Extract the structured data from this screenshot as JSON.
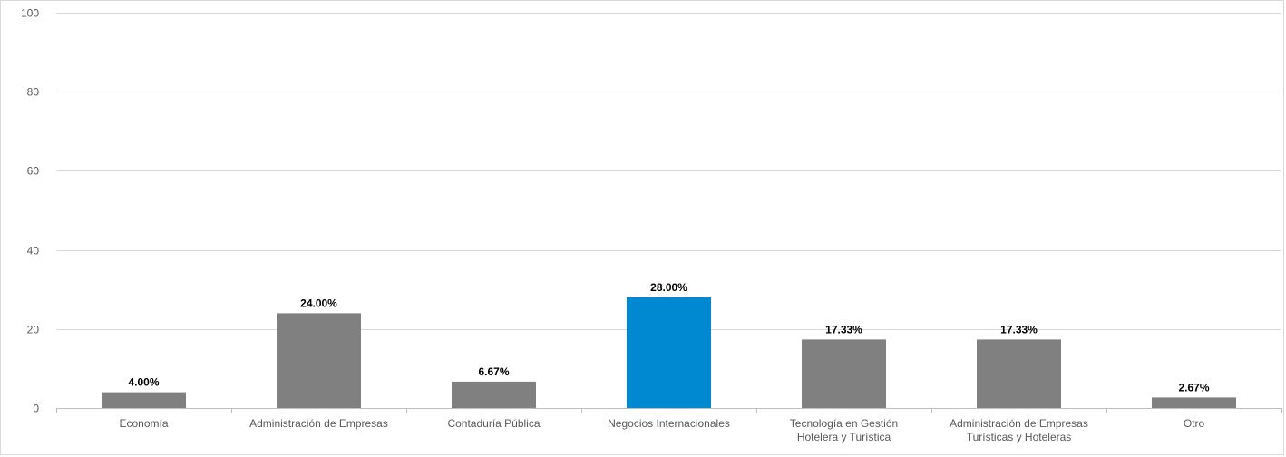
{
  "chart_data": {
    "type": "bar",
    "categories": [
      [
        "Economía"
      ],
      [
        "Administración de Empresas"
      ],
      [
        "Contaduría Pública"
      ],
      [
        "Negocios Internacionales"
      ],
      [
        "Tecnología en Gestión",
        "Hotelera y Turística"
      ],
      [
        "Administración de Empresas",
        "Turísticas y Hoteleras"
      ],
      [
        "Otro"
      ]
    ],
    "values": [
      4.0,
      24.0,
      6.67,
      28.0,
      17.33,
      17.33,
      2.67
    ],
    "data_labels": [
      "4.00%",
      "24.00%",
      "6.67%",
      "28.00%",
      "17.33%",
      "17.33%",
      "2.67%"
    ],
    "bar_colors": [
      "#808080",
      "#808080",
      "#808080",
      "#0088d1",
      "#808080",
      "#808080",
      "#808080"
    ],
    "ylim": [
      0,
      100
    ],
    "yticks": [
      0,
      20,
      40,
      60,
      80,
      100
    ],
    "grid": true,
    "legend": "none"
  }
}
